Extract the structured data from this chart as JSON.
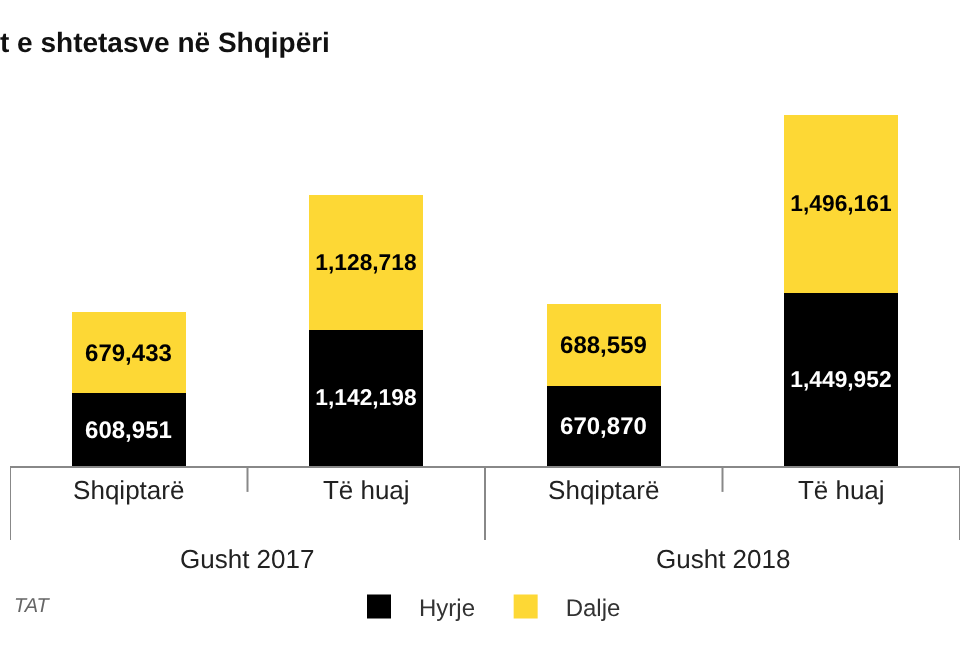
{
  "chart_data": {
    "type": "bar",
    "stacked": true,
    "title": "t e shtetasve në Shqipëri",
    "categories": [
      "Shqiptarë",
      "Të huaj",
      "Shqiptarë",
      "Të huaj"
    ],
    "series": [
      {
        "name": "Hyrje",
        "color": "#000000",
        "values": [
          608951,
          1142198,
          670870,
          1449952
        ],
        "value_labels": [
          "608,951",
          "1,142,198",
          "670,870",
          "1,449,952"
        ]
      },
      {
        "name": "Dalje",
        "color": "#fdd835",
        "values": [
          679433,
          1128718,
          688559,
          1496161
        ],
        "value_labels": [
          "679,433",
          "1,128,718",
          "688,559",
          "1,496,161"
        ]
      }
    ],
    "legend": "bottom",
    "tick_labels": "x",
    "annotations": [
      "Gusht 2017",
      "Gusht 2018",
      "TAT"
    ]
  }
}
